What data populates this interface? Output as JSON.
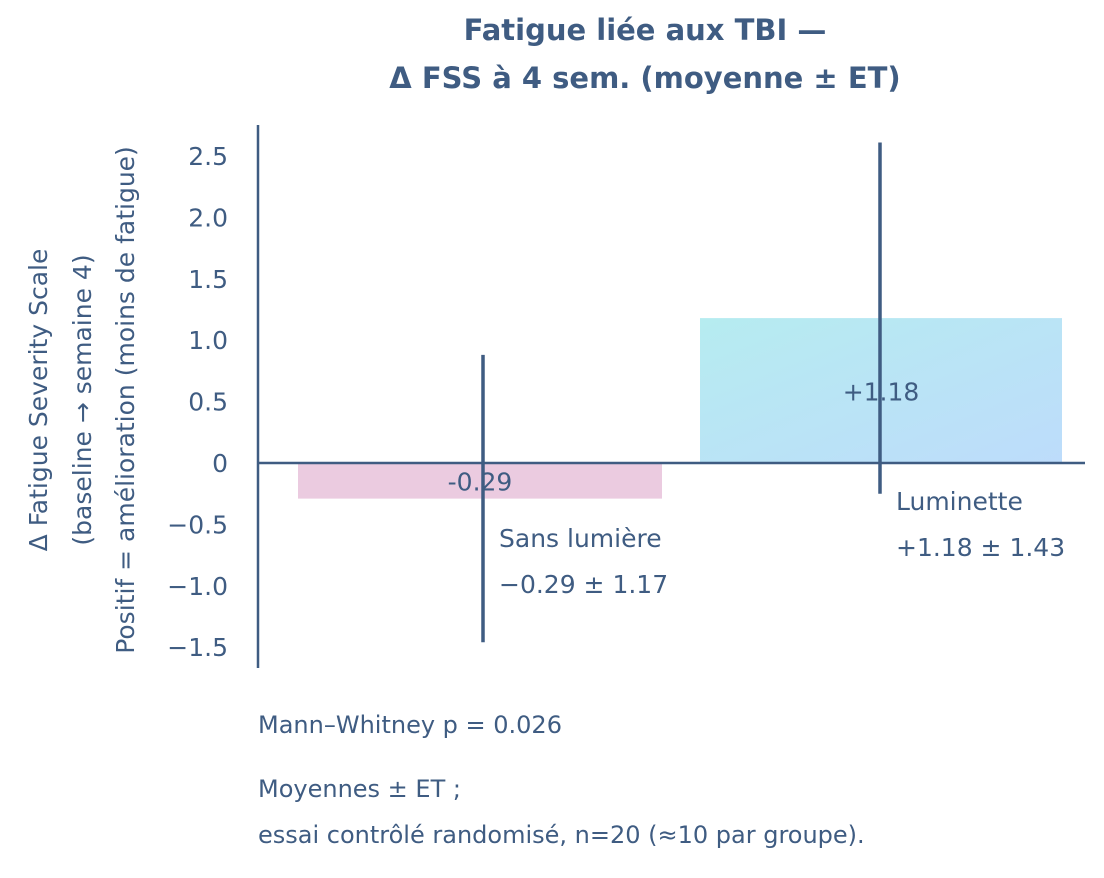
{
  "chart_data": {
    "type": "bar",
    "title_lines": [
      "Fatigue liée aux TBI —",
      "Δ FSS à 4 sem. (moyenne ± ET)"
    ],
    "ylabel_lines": [
      "Δ Fatigue Severity Scale",
      "(baseline → semaine 4)",
      "Positif = amélioration (moins de fatigue)"
    ],
    "xlabel": "",
    "categories": [
      "Sans lumière",
      "Luminette"
    ],
    "values": [
      -0.29,
      1.18
    ],
    "errors": [
      1.17,
      1.43
    ],
    "bar_labels": [
      "-0.29",
      "+1.18"
    ],
    "category_annotations": [
      "−0.29 ± 1.17",
      "+1.18 ± 1.43"
    ],
    "ylim": [
      -1.67,
      2.75
    ],
    "yticks": [
      -1.5,
      -1.0,
      -0.5,
      0,
      0.5,
      1.0,
      1.5,
      2.0,
      2.5
    ],
    "ytick_labels": [
      "−1.5",
      "−1.0",
      "−0.5",
      "0",
      "0.5",
      "1.0",
      "1.5",
      "2.0",
      "2.5"
    ],
    "grid": false,
    "colors": {
      "text": "#3f5c82",
      "bar_negative": "#ebcbe0",
      "bar_positive_start": "#b4ebf0",
      "bar_positive_end": "#bcdcfa"
    },
    "footnotes": [
      "Mann–Whitney p = 0.026",
      "Moyennes ± ET ;",
      "essai contrôlé randomisé, n=20 (≈10 par groupe)."
    ]
  }
}
